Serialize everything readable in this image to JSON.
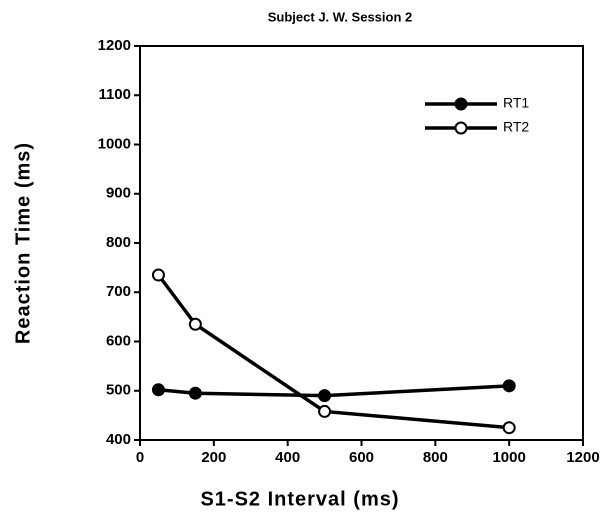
{
  "chart_data": {
    "type": "line",
    "title": "Subject J. W. Session 2",
    "x_label": "S1-S2 Interval (ms)",
    "y_label": "Reaction Time (ms)",
    "x": [
      50,
      150,
      500,
      1000
    ],
    "series": [
      {
        "name": "RT1",
        "color": "#000000",
        "marker": "filled",
        "values": [
          502,
          495,
          490,
          510
        ]
      },
      {
        "name": "RT2",
        "color": "#000000",
        "marker": "open",
        "values": [
          735,
          635,
          458,
          425
        ]
      }
    ],
    "xlim": [
      0,
      1200
    ],
    "xticks": [
      0,
      200,
      400,
      600,
      800,
      1000,
      1200
    ],
    "ylim": [
      400,
      1200
    ],
    "yticks": [
      400,
      500,
      600,
      700,
      800,
      900,
      1000,
      1100,
      1200
    ],
    "legend": "upper right"
  }
}
